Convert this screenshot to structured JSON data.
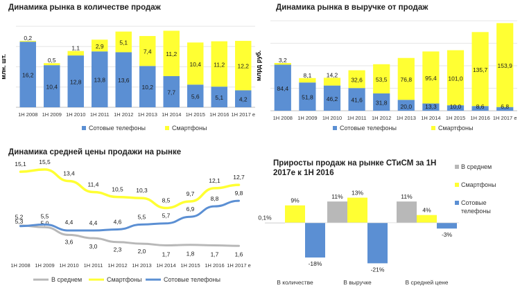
{
  "colors": {
    "blue": "#5b8fd3",
    "yellow": "#ffff33",
    "gray": "#b8b8b8",
    "grid": "#e6e6e6",
    "axis": "#bfbfbf"
  },
  "chart_data": [
    {
      "type": "bar",
      "stacked": true,
      "title": "Динамика рынка в количестве продаж",
      "ylabel": "млн. шт.",
      "categories": [
        "1H 2008",
        "1H 2009",
        "1H 2010",
        "1H 2011",
        "1H 2012",
        "1H 2013",
        "1H 2014",
        "1H 2015",
        "1H 2016",
        "1H 2017 е"
      ],
      "series": [
        {
          "name": "Сотовые телефоны",
          "color": "blue",
          "values": [
            16.2,
            10.4,
            12.8,
            13.8,
            13.6,
            10.2,
            7.7,
            5.6,
            5.1,
            4.2
          ],
          "labels": [
            "16,2",
            "10,4",
            "12,8",
            "13,8",
            "13,6",
            "10,2",
            "7,7",
            "5,6",
            "5,1",
            "4,2"
          ]
        },
        {
          "name": "Смартфоны",
          "color": "yellow",
          "values": [
            0.2,
            0.5,
            1.1,
            2.9,
            5.1,
            7.4,
            11.2,
            10.4,
            11.2,
            12.2
          ],
          "labels": [
            "0,2",
            "0,5",
            "1,1",
            "2,9",
            "5,1",
            "7,4",
            "11,2",
            "10,4",
            "11,2",
            "12,2"
          ]
        }
      ],
      "ylim": [
        0,
        20
      ],
      "grid": true,
      "legend": "bottom"
    },
    {
      "type": "bar",
      "stacked": true,
      "title": "Динамика рынка в выручке от продаж",
      "ylabel": "млрд руб.",
      "categories": [
        "1H 2008",
        "1H 2009",
        "1H 2010",
        "1H 2011",
        "1H 2012",
        "1H 2013",
        "1H 2014",
        "1H 2015",
        "1H 2016",
        "1H 2017 е"
      ],
      "series": [
        {
          "name": "Сотовые телефоны",
          "color": "blue",
          "values": [
            84.4,
            51.8,
            46.2,
            41.6,
            31.8,
            20.0,
            13.3,
            10.0,
            8.6,
            6.8
          ],
          "labels": [
            "84,4",
            "51,8",
            "46,2",
            "41,6",
            "31,8",
            "20,0",
            "13,3",
            "10,0",
            "8,6",
            "6,8"
          ]
        },
        {
          "name": "Смартфоны",
          "color": "yellow",
          "values": [
            3.2,
            8.1,
            14.2,
            32.6,
            53.5,
            76.8,
            95.4,
            101.0,
            135.7,
            153.9
          ],
          "labels": [
            "3,2",
            "8,1",
            "14,2",
            "32,6",
            "53,5",
            "76,8",
            "95,4",
            "101,0",
            "135,7",
            "153,9"
          ]
        }
      ],
      "ylim": [
        0,
        165
      ],
      "grid": true,
      "legend": "bottom"
    },
    {
      "type": "line",
      "title": "Динамика средней цены продажи на рынке",
      "categories": [
        "1H 2008",
        "1H 2009",
        "1H 2010",
        "1H 2011",
        "1H 2012",
        "1H 2013",
        "1H 2014",
        "1H 2015",
        "1H 2016",
        "1H 2017 е"
      ],
      "series": [
        {
          "name": "В среднем",
          "color": "gray",
          "values": [
            5.3,
            5.0,
            3.6,
            3.0,
            2.3,
            2.0,
            1.7,
            1.8,
            1.7,
            1.6
          ],
          "labels": [
            "5,3",
            "5,0",
            "3,6",
            "3,0",
            "2,3",
            "2,0",
            "1,7",
            "1,8",
            "1,7",
            "1,6"
          ]
        },
        {
          "name": "Смартфоны",
          "color": "yellow",
          "values": [
            15.1,
            15.5,
            13.4,
            11.4,
            10.5,
            10.3,
            8.5,
            9.7,
            12.1,
            12.7
          ],
          "labels": [
            "15,1",
            "15,5",
            "13,4",
            "11,4",
            "10,5",
            "10,3",
            "8,5",
            "9,7",
            "12,1",
            "12,7"
          ]
        },
        {
          "name": "Сотовые телефоны",
          "color": "blue",
          "values": [
            5.2,
            5.5,
            4.4,
            4.4,
            4.6,
            5.5,
            5.7,
            6.9,
            8.8,
            9.8
          ],
          "labels": [
            "5,2",
            "5,5",
            "4,4",
            "4,4",
            "4,6",
            "5,5",
            "5,7",
            "6,9",
            "8,8",
            "9,8"
          ]
        }
      ],
      "ylim": [
        0,
        17
      ],
      "legend": "bottom"
    },
    {
      "type": "bar",
      "title": "Приросты продаж на рынке СТиСМ за 1Н 2017е к 1Н 2016",
      "categories": [
        "В количестве",
        "В выручке",
        "В средней цене"
      ],
      "series": [
        {
          "name": "В среднем",
          "color": "gray",
          "values": [
            0.1,
            11,
            11
          ],
          "labels": [
            "0,1%",
            "11%",
            "11%"
          ]
        },
        {
          "name": "Смартфоны",
          "color": "yellow",
          "values": [
            9,
            13,
            4
          ],
          "labels": [
            "9%",
            "13%",
            "4%"
          ]
        },
        {
          "name": "Сотовые телефоны",
          "color": "blue",
          "values": [
            -18,
            -21,
            -3
          ],
          "labels": [
            "-18%",
            "-21%",
            "-3%"
          ]
        }
      ],
      "ylim": [
        -23,
        15
      ],
      "legend": "right"
    }
  ]
}
